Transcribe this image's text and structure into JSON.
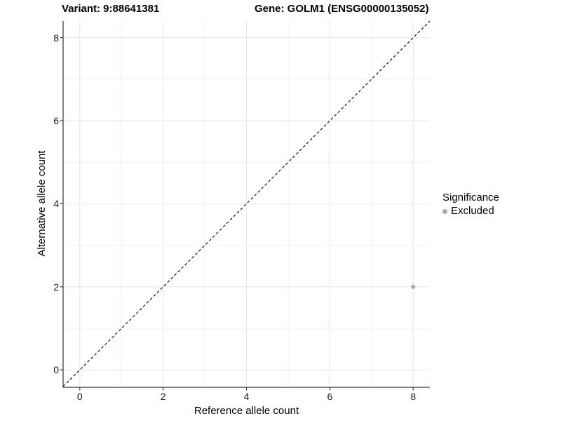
{
  "chart_data": {
    "type": "scatter",
    "title_variant": "Variant: 9:88641381",
    "title_gene": "Gene: GOLM1 (ENSG00000135052)",
    "xlabel": "Reference allele count",
    "ylabel": "Alternative allele count",
    "xlim": [
      -0.4,
      8.4
    ],
    "ylim": [
      -0.42,
      8.4
    ],
    "x_ticks": [
      0,
      2,
      4,
      6,
      8
    ],
    "y_ticks": [
      0,
      2,
      4,
      6,
      8
    ],
    "x_minor_ticks": [
      1,
      3,
      5,
      7
    ],
    "y_minor_ticks": [
      1,
      3,
      5,
      7
    ],
    "grid": true,
    "identity_line": {
      "style": "dashed",
      "equation": "y = x",
      "color": "#000000"
    },
    "series": [
      {
        "name": "Excluded",
        "color": "#aaaaaa",
        "points": [
          {
            "x": 8,
            "y": 2
          }
        ]
      }
    ],
    "legend": {
      "title": "Significance",
      "position": "right",
      "items": [
        {
          "label": "Excluded",
          "color": "#aaaaaa"
        }
      ]
    },
    "style": {
      "axis_color": "#333333",
      "tick_color": "#333333",
      "grid_major_color": "#e6e6e6",
      "grid_minor_color": "#f2f2f2",
      "point_radius": 3,
      "background": "#ffffff"
    }
  }
}
